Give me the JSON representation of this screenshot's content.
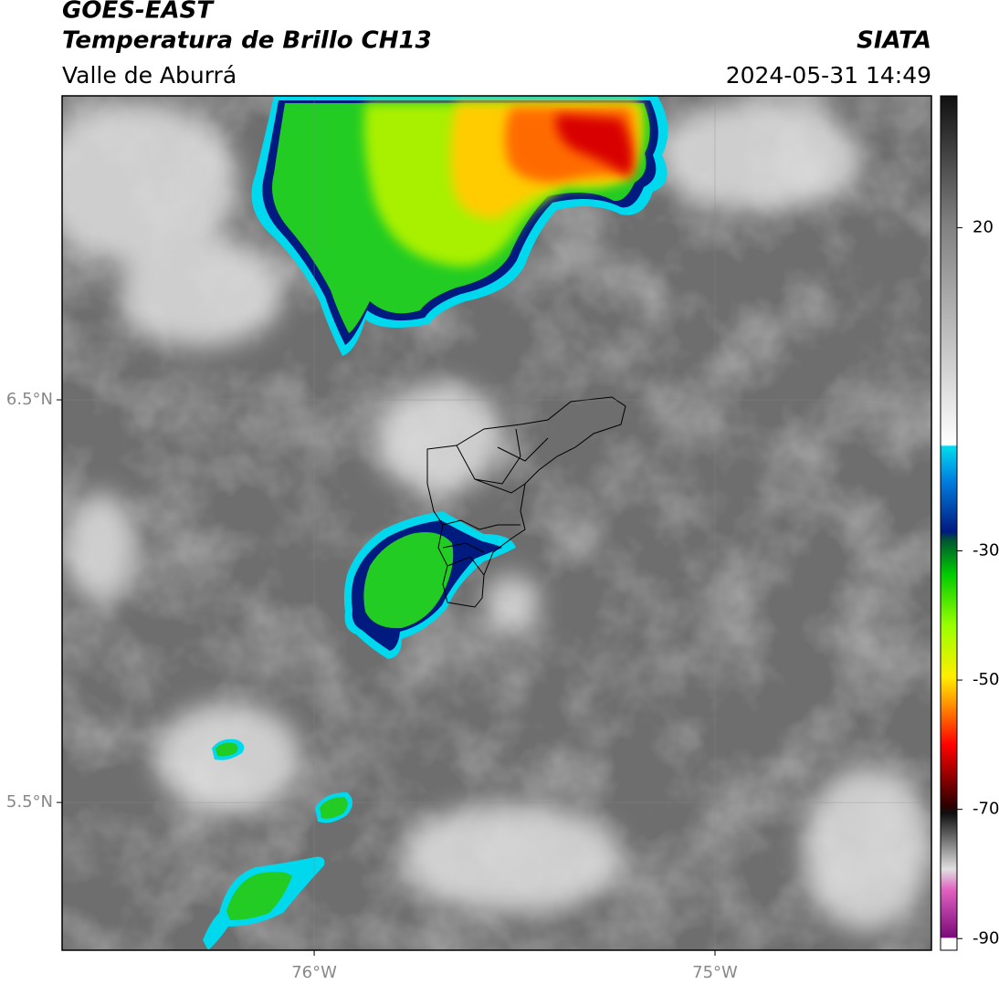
{
  "header": {
    "title": "GOES-EAST",
    "subtitle": "Temperatura de Brillo CH13",
    "region": "Valle de Aburrá",
    "source": "SIATA",
    "datetime": "2024-05-31 14:49"
  },
  "map": {
    "xlim": [
      -76.629,
      -74.46
    ],
    "ylim": [
      5.133,
      7.255
    ],
    "xticks": [
      {
        "value": -76,
        "label": "76°W"
      },
      {
        "value": -75,
        "label": "75°W"
      }
    ],
    "yticks": [
      {
        "value": 6.5,
        "label": "6.5°N"
      },
      {
        "value": 5.5,
        "label": "5.5°N"
      }
    ]
  },
  "colorbar": {
    "lim": [
      -91.8,
      40.4
    ],
    "ticks": [
      20,
      -30,
      -50,
      -70,
      -90
    ]
  }
}
